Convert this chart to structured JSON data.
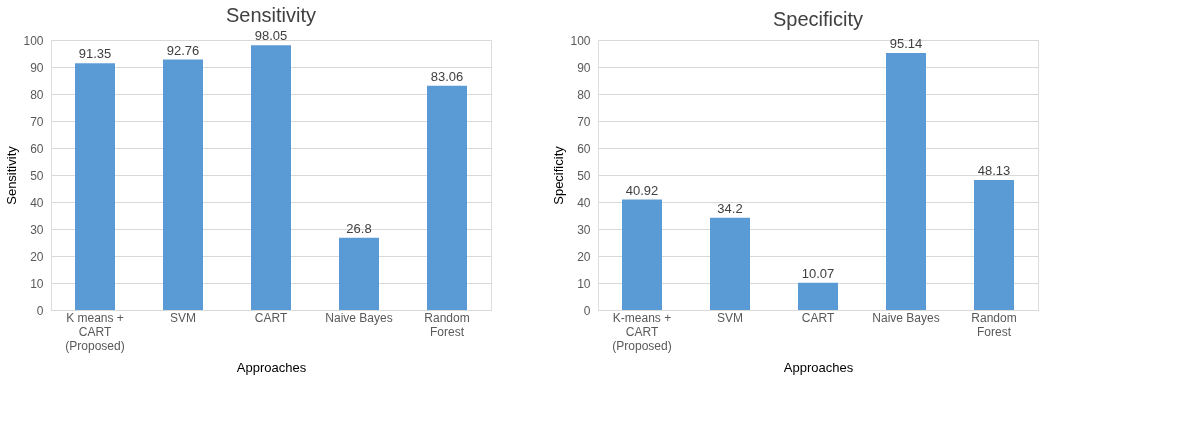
{
  "chart_data": [
    {
      "type": "bar",
      "title": "Sensitivity",
      "xlabel": "Approaches",
      "ylabel": "Sensitivity",
      "categories": [
        "K means + CART (Proposed)",
        "SVM",
        "CART",
        "Naive Bayes",
        "Random Forest"
      ],
      "values": [
        91.35,
        92.76,
        98.05,
        26.8,
        83.06
      ],
      "color": "#5b9bd5",
      "ylim": [
        0,
        100
      ],
      "yticks": [
        0,
        10,
        20,
        30,
        40,
        50,
        60,
        70,
        80,
        90,
        100
      ],
      "grid": "y",
      "data_labels": true
    },
    {
      "type": "bar",
      "title": "Specificity",
      "xlabel": "Approaches",
      "ylabel": "Specificity",
      "categories": [
        "K-means + CART (Proposed)",
        "SVM",
        "CART",
        "Naive Bayes",
        "Random Forest"
      ],
      "values": [
        40.92,
        34.2,
        10.07,
        95.14,
        48.13
      ],
      "color": "#5b9bd5",
      "ylim": [
        0,
        100
      ],
      "yticks": [
        0,
        10,
        20,
        30,
        40,
        50,
        60,
        70,
        80,
        90,
        100
      ],
      "grid": "y",
      "data_labels": true
    }
  ]
}
